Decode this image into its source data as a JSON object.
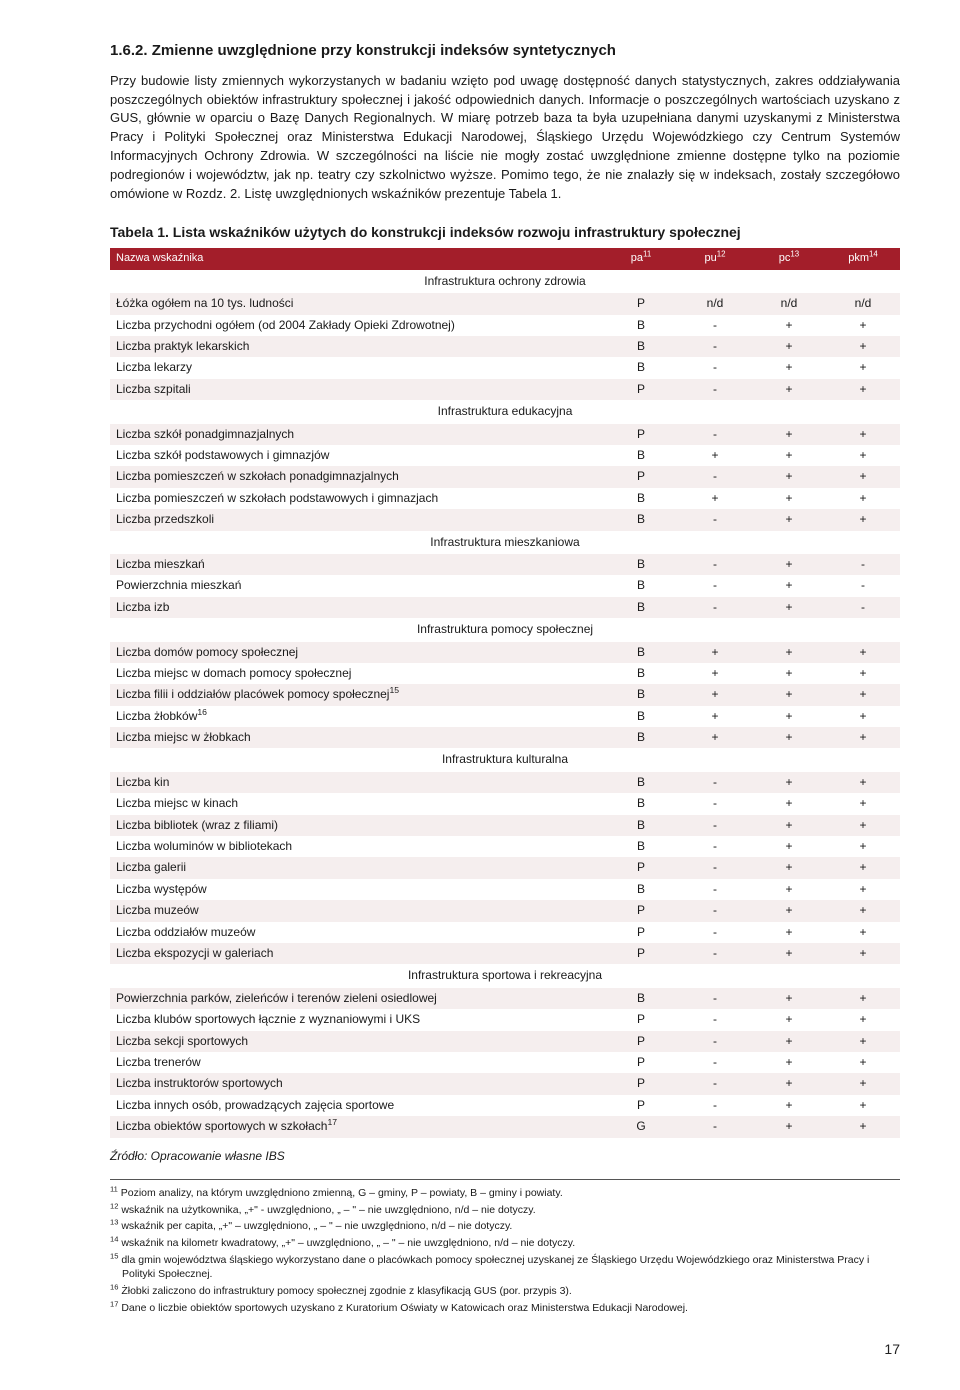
{
  "heading": "1.6.2.  Zmienne uwzględnione przy konstrukcji indeksów syntetycznych",
  "para1": "Przy budowie listy zmiennych wykorzystanych w badaniu wzięto pod uwagę dostępność danych statystycznych, zakres oddziaływania poszczególnych obiektów infrastruktury społecznej i jakość odpowiednich danych. Informacje o poszczególnych wartościach uzyskano z GUS, głównie w oparciu o Bazę Danych Regionalnych. W miarę potrzeb baza ta była uzupełniana danymi uzyskanymi z Ministerstwa Pracy i Polityki Społecznej oraz Ministerstwa Edukacji Narodowej, Śląskiego Urzędu Wojewódzkiego czy Centrum Systemów Informacyjnych Ochrony Zdrowia. W szczególności na liście nie mogły zostać uwzględnione zmienne dostępne tylko na poziomie podregionów i województw, jak np. teatry czy szkolnictwo wyższe. Pomimo tego, że nie znalazły się w indeksach, zostały szczegółowo omówione w Rozdz. 2. Listę uwzględnionych wskaźników prezentuje Tabela 1.",
  "table_title": "Tabela 1. Lista wskaźników użytych do konstrukcji indeksów rozwoju infrastruktury społecznej",
  "columns": {
    "name": "Nazwa wskaźnika",
    "pa": "pa",
    "pa_sup": "11",
    "pu": "pu",
    "pu_sup": "12",
    "pc": "pc",
    "pc_sup": "13",
    "pkm": "pkm",
    "pkm_sup": "14"
  },
  "sections": [
    {
      "title": "Infrastruktura ochrony zdrowia",
      "rows": [
        {
          "name": "Łóżka ogółem na 10 tys. ludności",
          "pa": "P",
          "pu": "n/d",
          "pc": "n/d",
          "pkm": "n/d"
        },
        {
          "name": "Liczba przychodni ogółem (od 2004 Zakłady Opieki Zdrowotnej)",
          "pa": "B",
          "pu": "-",
          "pc": "+",
          "pkm": "+"
        },
        {
          "name": "Liczba praktyk lekarskich",
          "pa": "B",
          "pu": "-",
          "pc": "+",
          "pkm": "+"
        },
        {
          "name": "Liczba lekarzy",
          "pa": "B",
          "pu": "-",
          "pc": "+",
          "pkm": "+"
        },
        {
          "name": "Liczba szpitali",
          "pa": "P",
          "pu": "-",
          "pc": "+",
          "pkm": "+"
        }
      ]
    },
    {
      "title": "Infrastruktura edukacyjna",
      "rows": [
        {
          "name": "Liczba szkół ponadgimnazjalnych",
          "pa": "P",
          "pu": "-",
          "pc": "+",
          "pkm": "+"
        },
        {
          "name": "Liczba szkół podstawowych i gimnazjów",
          "pa": "B",
          "pu": "+",
          "pc": "+",
          "pkm": "+"
        },
        {
          "name": "Liczba pomieszczeń w szkołach ponadgimnazjalnych",
          "pa": "P",
          "pu": "-",
          "pc": "+",
          "pkm": "+"
        },
        {
          "name": "Liczba pomieszczeń w szkołach podstawowych i gimnazjach",
          "pa": "B",
          "pu": "+",
          "pc": "+",
          "pkm": "+"
        },
        {
          "name": "Liczba przedszkoli",
          "pa": "B",
          "pu": "-",
          "pc": "+",
          "pkm": "+"
        }
      ]
    },
    {
      "title": "Infrastruktura mieszkaniowa",
      "rows": [
        {
          "name": "Liczba mieszkań",
          "pa": "B",
          "pu": "-",
          "pc": "+",
          "pkm": "-"
        },
        {
          "name": "Powierzchnia mieszkań",
          "pa": "B",
          "pu": "-",
          "pc": "+",
          "pkm": "-"
        },
        {
          "name": "Liczba izb",
          "pa": "B",
          "pu": "-",
          "pc": "+",
          "pkm": "-"
        }
      ]
    },
    {
      "title": "Infrastruktura pomocy społecznej",
      "rows": [
        {
          "name": "Liczba domów pomocy społecznej",
          "pa": "B",
          "pu": "+",
          "pc": "+",
          "pkm": "+"
        },
        {
          "name": "Liczba miejsc w domach pomocy społecznej",
          "pa": "B",
          "pu": "+",
          "pc": "+",
          "pkm": "+"
        },
        {
          "name": "Liczba filii i oddziałów placówek pomocy społecznej",
          "sup": "15",
          "pa": "B",
          "pu": "+",
          "pc": "+",
          "pkm": "+"
        },
        {
          "name": "Liczba żłobków",
          "sup": "16",
          "pa": "B",
          "pu": "+",
          "pc": "+",
          "pkm": "+"
        },
        {
          "name": "Liczba miejsc w żłobkach",
          "pa": "B",
          "pu": "+",
          "pc": "+",
          "pkm": "+"
        }
      ]
    },
    {
      "title": "Infrastruktura kulturalna",
      "rows": [
        {
          "name": "Liczba kin",
          "pa": "B",
          "pu": "-",
          "pc": "+",
          "pkm": "+"
        },
        {
          "name": "Liczba miejsc w kinach",
          "pa": "B",
          "pu": "-",
          "pc": "+",
          "pkm": "+"
        },
        {
          "name": "Liczba bibliotek (wraz z filiami)",
          "pa": "B",
          "pu": "-",
          "pc": "+",
          "pkm": "+"
        },
        {
          "name": "Liczba woluminów w bibliotekach",
          "pa": "B",
          "pu": "-",
          "pc": "+",
          "pkm": "+"
        },
        {
          "name": "Liczba galerii",
          "pa": "P",
          "pu": "-",
          "pc": "+",
          "pkm": "+"
        },
        {
          "name": "Liczba występów",
          "pa": "B",
          "pu": "-",
          "pc": "+",
          "pkm": "+"
        },
        {
          "name": "Liczba muzeów",
          "pa": "P",
          "pu": "-",
          "pc": "+",
          "pkm": "+"
        },
        {
          "name": "Liczba oddziałów muzeów",
          "pa": "P",
          "pu": "-",
          "pc": "+",
          "pkm": "+"
        },
        {
          "name": "Liczba ekspozycji w galeriach",
          "pa": "P",
          "pu": "-",
          "pc": "+",
          "pkm": "+"
        }
      ]
    },
    {
      "title": "Infrastruktura sportowa i rekreacyjna",
      "rows": [
        {
          "name": "Powierzchnia parków, zieleńców i terenów zieleni osiedlowej",
          "pa": "B",
          "pu": "-",
          "pc": "+",
          "pkm": "+"
        },
        {
          "name": "Liczba klubów sportowych łącznie z wyznaniowymi i UKS",
          "pa": "P",
          "pu": "-",
          "pc": "+",
          "pkm": "+"
        },
        {
          "name": "Liczba sekcji sportowych",
          "pa": "P",
          "pu": "-",
          "pc": "+",
          "pkm": "+"
        },
        {
          "name": "Liczba trenerów",
          "pa": "P",
          "pu": "-",
          "pc": "+",
          "pkm": "+"
        },
        {
          "name": "Liczba instruktorów sportowych",
          "pa": "P",
          "pu": "-",
          "pc": "+",
          "pkm": "+"
        },
        {
          "name": "Liczba innych osób, prowadzących zajęcia sportowe",
          "pa": "P",
          "pu": "-",
          "pc": "+",
          "pkm": "+"
        },
        {
          "name": "Liczba obiektów sportowych w szkołach",
          "sup": "17",
          "pa": "G",
          "pu": "-",
          "pc": "+",
          "pkm": "+"
        }
      ]
    }
  ],
  "source": "Źródło: Opracowanie własne IBS",
  "footnotes": [
    {
      "n": "11",
      "t": "Poziom analizy, na którym uwzględniono zmienną, G – gminy, P – powiaty, B – gminy i powiaty."
    },
    {
      "n": "12",
      "t": "wskaźnik na użytkownika, „+\" - uwzględniono, „ – \" – nie uwzględniono, n/d – nie dotyczy."
    },
    {
      "n": "13",
      "t": "wskaźnik per capita, „+\" – uwzględniono, „ – \" – nie uwzględniono, n/d – nie dotyczy."
    },
    {
      "n": "14",
      "t": "wskaźnik na kilometr kwadratowy, „+\" – uwzględniono, „ – \" – nie uwzględniono, n/d – nie dotyczy."
    },
    {
      "n": "15",
      "t": "dla gmin województwa śląskiego wykorzystano dane o placówkach pomocy społecznej uzyskanej ze Śląskiego Urzędu Wojewódzkiego oraz Ministerstwa Pracy i Polityki Społecznej."
    },
    {
      "n": "16",
      "t": "Żłobki zaliczono do infrastruktury pomocy społecznej zgodnie z klasyfikacją GUS (por. przypis 3)."
    },
    {
      "n": "17",
      "t": "Dane o liczbie obiektów sportowych uzyskano z Kuratorium Oświaty w Katowicach oraz Ministerstwa Edukacji Narodowej."
    }
  ],
  "page_number": "17"
}
